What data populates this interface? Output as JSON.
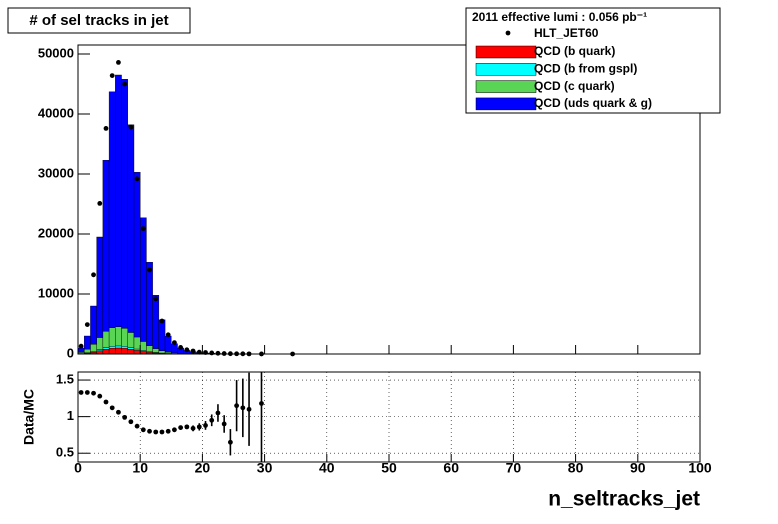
{
  "chart_data": [
    {
      "type": "histogram",
      "title": "# of sel tracks in jet",
      "legend_title": "2011 effective lumi : 0.056 pb⁻¹",
      "legend": "upper right",
      "stacked": true,
      "bins": [
        0,
        1,
        2,
        3,
        4,
        5,
        6,
        7,
        8,
        9,
        10,
        11,
        12,
        13,
        14,
        15,
        16,
        17,
        18,
        19,
        20,
        21,
        22,
        23,
        24,
        25,
        26,
        27,
        28,
        29,
        30
      ],
      "series": [
        {
          "name": "QCD (b quark)",
          "color": "#ff0000",
          "values": [
            50,
            150,
            300,
            550,
            800,
            950,
            1000,
            950,
            800,
            600,
            420,
            280,
            180,
            110,
            60,
            35,
            20,
            12,
            8,
            5,
            3,
            2,
            1,
            1,
            0,
            0,
            0,
            0,
            0,
            0
          ]
        },
        {
          "name": "QCD (b from gspl)",
          "color": "#00ffff",
          "values": [
            20,
            60,
            120,
            200,
            280,
            330,
            350,
            330,
            290,
            230,
            170,
            110,
            70,
            45,
            25,
            15,
            9,
            5,
            3,
            2,
            1,
            1,
            0,
            0,
            0,
            0,
            0,
            0,
            0,
            0
          ]
        },
        {
          "name": "QCD (c quark)",
          "color": "#59d454",
          "values": [
            200,
            600,
            1200,
            2000,
            2700,
            3100,
            3200,
            3000,
            2500,
            2000,
            1500,
            1000,
            650,
            400,
            230,
            130,
            75,
            45,
            30,
            20,
            12,
            8,
            5,
            3,
            2,
            1,
            1,
            0,
            0,
            0
          ]
        },
        {
          "name": "QCD (uds quark & g)",
          "color": "#0000ff",
          "values": [
            730,
            2190,
            6380,
            16750,
            28520,
            39320,
            41950,
            41520,
            34610,
            27470,
            20610,
            13910,
            8900,
            5145,
            2685,
            1520,
            896,
            538,
            359,
            223,
            154,
            109,
            74,
            51,
            38,
            27,
            19,
            14,
            10,
            7
          ]
        }
      ],
      "data": {
        "name": "HLT_JET60",
        "color": "#000000",
        "x": [
          0.5,
          1.5,
          2.5,
          3.5,
          4.5,
          5.5,
          6.5,
          7.5,
          8.5,
          9.5,
          10.5,
          11.5,
          12.5,
          13.5,
          14.5,
          15.5,
          16.5,
          17.5,
          18.5,
          19.5,
          20.5,
          21.5,
          22.5,
          23.5,
          24.5,
          25.5,
          26.5,
          27.5,
          29.5,
          34.5
        ],
        "values": [
          1300,
          4900,
          13200,
          25100,
          37600,
          46400,
          48600,
          45000,
          37800,
          29200,
          20900,
          14000,
          9200,
          5500,
          3200,
          1900,
          1100,
          700,
          500,
          300,
          250,
          180,
          120,
          80,
          50,
          40,
          30,
          20,
          8,
          2
        ]
      },
      "xlim": [
        0,
        100
      ],
      "ylim": [
        0,
        51500
      ],
      "yticks": [
        0,
        10000,
        20000,
        30000,
        40000,
        50000
      ]
    },
    {
      "type": "ratio",
      "y_label": "Data/MC",
      "x_label": "n_seltracks_jet",
      "color": "#000000",
      "x": [
        0.5,
        1.5,
        2.5,
        3.5,
        4.5,
        5.5,
        6.5,
        7.5,
        8.5,
        9.5,
        10.5,
        11.5,
        12.5,
        13.5,
        14.5,
        15.5,
        16.5,
        17.5,
        18.5,
        19.5,
        20.5,
        21.5,
        22.5,
        23.5,
        24.5,
        25.5,
        26.5,
        27.5,
        29.5
      ],
      "values": [
        1.33,
        1.33,
        1.32,
        1.28,
        1.2,
        1.12,
        1.06,
        0.99,
        0.93,
        0.87,
        0.82,
        0.8,
        0.79,
        0.79,
        0.8,
        0.82,
        0.85,
        0.86,
        0.84,
        0.86,
        0.88,
        0.95,
        1.05,
        0.9,
        0.65,
        1.15,
        1.12,
        1.1,
        1.18
      ],
      "errors": [
        0.01,
        0.01,
        0.01,
        0.01,
        0.01,
        0.01,
        0.01,
        0.01,
        0.01,
        0.01,
        0.01,
        0.01,
        0.01,
        0.01,
        0.02,
        0.02,
        0.03,
        0.03,
        0.04,
        0.05,
        0.06,
        0.08,
        0.12,
        0.12,
        0.18,
        0.35,
        0.4,
        0.5,
        0.8
      ],
      "xlim": [
        0,
        100
      ],
      "ylim": [
        0.38,
        1.61
      ],
      "xticks": [
        0,
        10,
        20,
        30,
        40,
        50,
        60,
        70,
        80,
        90,
        100
      ],
      "yticks": [
        0.5,
        1,
        1.5
      ],
      "grid": true
    }
  ]
}
